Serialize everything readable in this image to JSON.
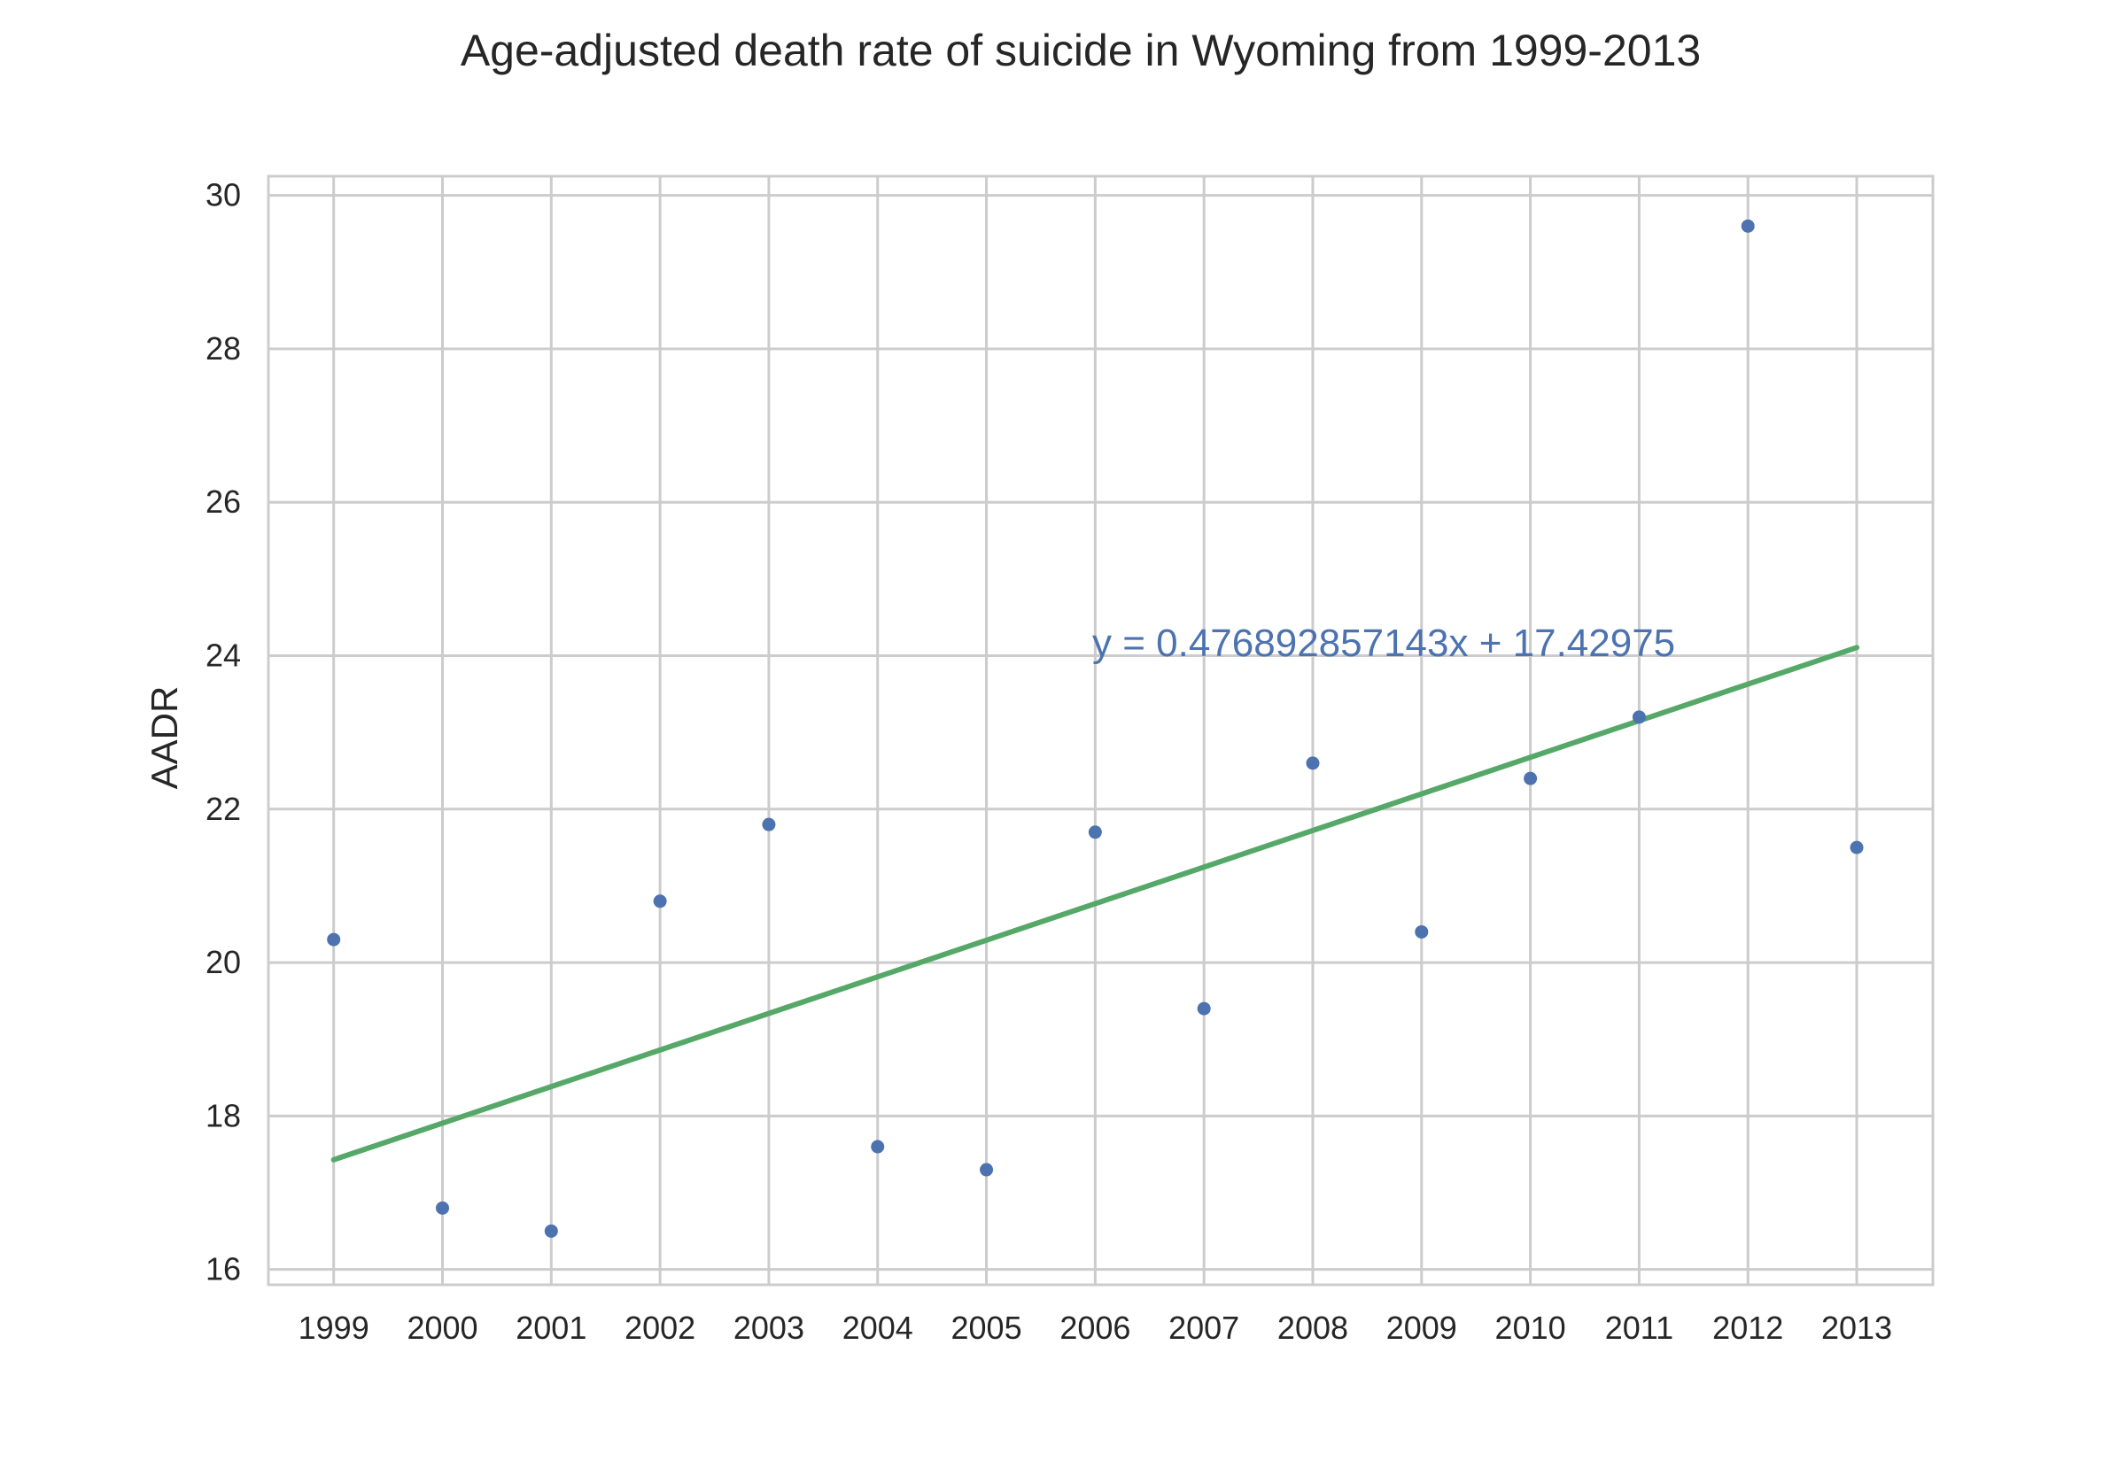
{
  "chart_data": {
    "type": "scatter",
    "title": "Age-adjusted death rate of suicide in Wyoming from 1999-2013",
    "xlabel": "",
    "ylabel": "AADR",
    "x": [
      1999,
      2000,
      2001,
      2002,
      2003,
      2004,
      2005,
      2006,
      2007,
      2008,
      2009,
      2010,
      2011,
      2012,
      2013
    ],
    "x_tick_labels": [
      "1999",
      "2000",
      "2001",
      "2002",
      "2003",
      "2004",
      "2005",
      "2006",
      "2007",
      "2008",
      "2009",
      "2010",
      "2011",
      "2012",
      "2013"
    ],
    "y": [
      20.3,
      16.8,
      16.5,
      20.8,
      21.8,
      17.6,
      17.3,
      21.7,
      19.4,
      22.6,
      20.4,
      22.4,
      23.2,
      29.6,
      21.5
    ],
    "y_ticks": [
      16,
      18,
      20,
      22,
      24,
      26,
      28,
      30
    ],
    "y_tick_labels": [
      "16",
      "18",
      "20",
      "22",
      "24",
      "26",
      "28",
      "30"
    ],
    "xlim": [
      1998.4,
      2013.7
    ],
    "ylim": [
      15.8,
      30.25
    ],
    "grid": true,
    "point_color": "#4c72b0",
    "trendline": {
      "slope": 0.476892857143,
      "intercept": 17.42975,
      "color": "#55a868",
      "label": "y = 0.476892857143x + 17.42975"
    },
    "annotation_color": "#4c72b0"
  }
}
